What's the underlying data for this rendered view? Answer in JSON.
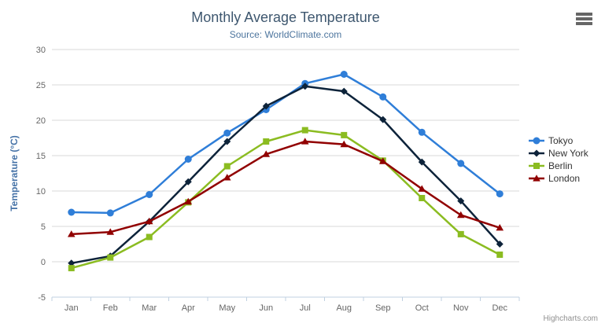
{
  "chart_data": {
    "type": "line",
    "title": "Monthly Average Temperature",
    "subtitle": "Source: WorldClimate.com",
    "xlabel": "",
    "ylabel": "Temperature (°C)",
    "ylim": [
      -5,
      30
    ],
    "y_ticks": [
      -5,
      0,
      5,
      10,
      15,
      20,
      25,
      30
    ],
    "grid": "horizontal",
    "legend_position": "right",
    "categories": [
      "Jan",
      "Feb",
      "Mar",
      "Apr",
      "May",
      "Jun",
      "Jul",
      "Aug",
      "Sep",
      "Oct",
      "Nov",
      "Dec"
    ],
    "series": [
      {
        "name": "Tokyo",
        "color": "#2f7ed8",
        "marker": "circle",
        "values": [
          7.0,
          6.9,
          9.5,
          14.5,
          18.2,
          21.5,
          25.2,
          26.5,
          23.3,
          18.3,
          13.9,
          9.6
        ]
      },
      {
        "name": "New York",
        "color": "#0d233a",
        "marker": "diamond",
        "values": [
          -0.2,
          0.8,
          5.7,
          11.3,
          17.0,
          22.0,
          24.8,
          24.1,
          20.1,
          14.1,
          8.6,
          2.5
        ]
      },
      {
        "name": "Berlin",
        "color": "#8bbc21",
        "marker": "square",
        "values": [
          -0.9,
          0.6,
          3.5,
          8.4,
          13.5,
          17.0,
          18.6,
          17.9,
          14.3,
          9.0,
          3.9,
          1.0
        ]
      },
      {
        "name": "London",
        "color": "#910000",
        "marker": "triangle",
        "values": [
          3.9,
          4.2,
          5.7,
          8.5,
          11.9,
          15.2,
          17.0,
          16.6,
          14.2,
          10.3,
          6.6,
          4.8
        ]
      }
    ],
    "axis_colors": {
      "grid_line": "#d8d8d8",
      "axis_line": "#c0d0e0",
      "tick_label": "#666666",
      "axis_title": "#4572a7"
    }
  },
  "credits": {
    "label": "Highcharts.com"
  }
}
